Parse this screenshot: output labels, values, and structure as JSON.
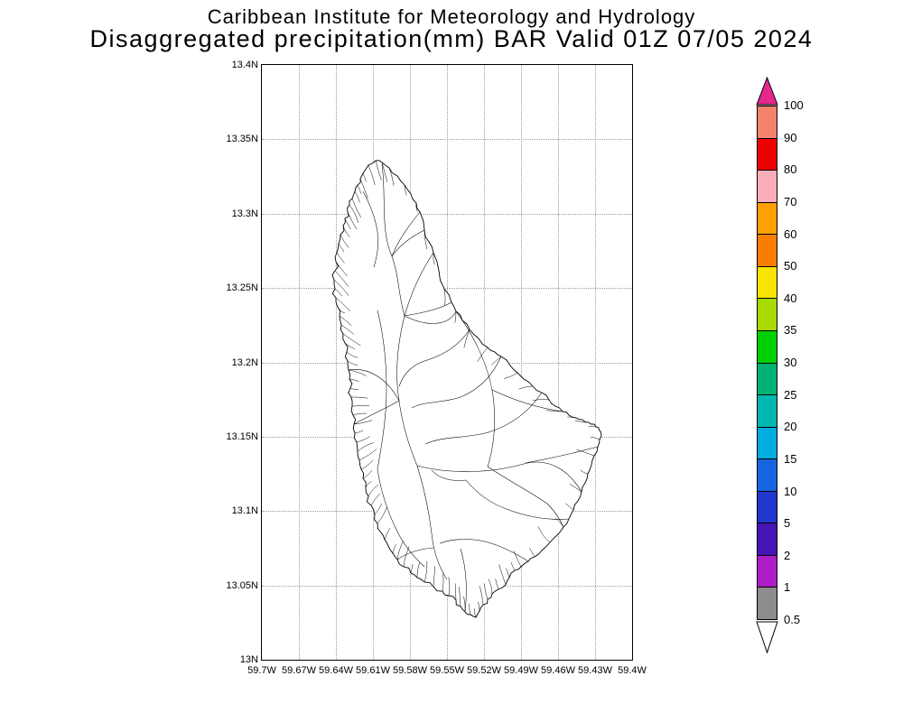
{
  "header": {
    "line1": "Caribbean Institute for Meteorology and Hydrology",
    "line2": "Disaggregated precipitation(mm) BAR Valid 01Z 07/05 2024"
  },
  "map": {
    "y_ticks": [
      "13.4N",
      "13.35N",
      "13.3N",
      "13.25N",
      "13.2N",
      "13.15N",
      "13.1N",
      "13.05N",
      "13N"
    ],
    "x_ticks": [
      "59.7W",
      "59.67W",
      "59.64W",
      "59.61W",
      "59.58W",
      "59.55W",
      "59.52W",
      "59.49W",
      "59.46W",
      "59.43W",
      "59.4W"
    ]
  },
  "colorbar": {
    "levels": [
      "100",
      "90",
      "80",
      "70",
      "60",
      "50",
      "40",
      "35",
      "30",
      "25",
      "20",
      "15",
      "10",
      "5",
      "2",
      "1",
      "0.5"
    ],
    "segment_colors": [
      "#f4836d",
      "#ee0000",
      "#f9aeb9",
      "#ffa000",
      "#fa7d00",
      "#f7e400",
      "#a8d900",
      "#00d000",
      "#00b273",
      "#00b8b0",
      "#00ace0",
      "#1565e0",
      "#2038cc",
      "#4613b4",
      "#ae1cc8",
      "#8c8c8c"
    ],
    "arrow_top_color": "#e4288e",
    "arrow_bottom_color": "#ffffff",
    "outline_color": "#000000"
  }
}
